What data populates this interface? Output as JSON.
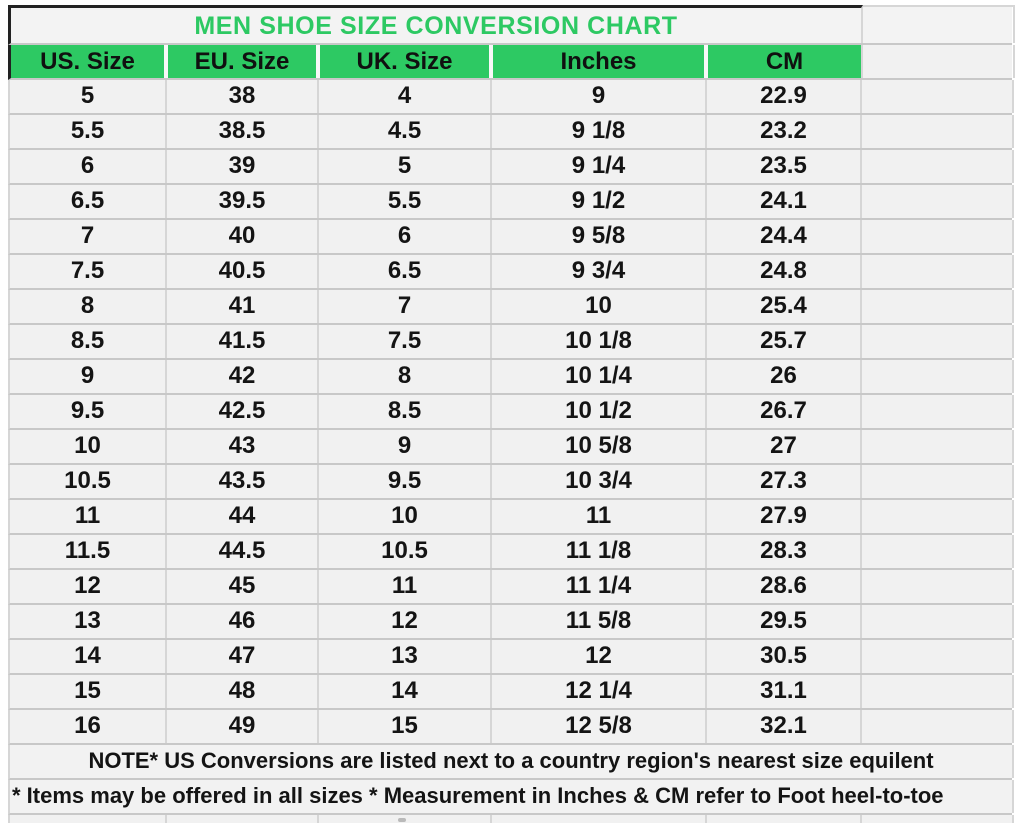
{
  "title": "MEN SHOE SIZE CONVERSION CHART",
  "table": {
    "headers": [
      "US. Size",
      "EU. Size",
      "UK. Size",
      "Inches",
      "CM"
    ],
    "rows": [
      [
        "5",
        "38",
        "4",
        "9",
        "22.9"
      ],
      [
        "5.5",
        "38.5",
        "4.5",
        "9 1/8",
        "23.2"
      ],
      [
        "6",
        "39",
        "5",
        "9 1/4",
        "23.5"
      ],
      [
        "6.5",
        "39.5",
        "5.5",
        "9 1/2",
        "24.1"
      ],
      [
        "7",
        "40",
        "6",
        "9 5/8",
        "24.4"
      ],
      [
        "7.5",
        "40.5",
        "6.5",
        "9 3/4",
        "24.8"
      ],
      [
        "8",
        "41",
        "7",
        "10",
        "25.4"
      ],
      [
        "8.5",
        "41.5",
        "7.5",
        "10 1/8",
        "25.7"
      ],
      [
        "9",
        "42",
        "8",
        "10 1/4",
        "26"
      ],
      [
        "9.5",
        "42.5",
        "8.5",
        "10 1/2",
        "26.7"
      ],
      [
        "10",
        "43",
        "9",
        "10 5/8",
        "27"
      ],
      [
        "10.5",
        "43.5",
        "9.5",
        "10 3/4",
        "27.3"
      ],
      [
        "11",
        "44",
        "10",
        "11",
        "27.9"
      ],
      [
        "11.5",
        "44.5",
        "10.5",
        "11 1/8",
        "28.3"
      ],
      [
        "12",
        "45",
        "11",
        "11 1/4",
        "28.6"
      ],
      [
        "13",
        "46",
        "12",
        "11 5/8",
        "29.5"
      ],
      [
        "14",
        "47",
        "13",
        "12",
        "30.5"
      ],
      [
        "15",
        "48",
        "14",
        "12 1/4",
        "31.1"
      ],
      [
        "16",
        "49",
        "15",
        "12 5/8",
        "32.1"
      ]
    ]
  },
  "notes": {
    "line1": "NOTE* US Conversions are listed next to a country region's nearest size equilent",
    "line2": "* Items may be offered in all sizes * Measurement in Inches & CM refer to Foot heel-to-toe"
  },
  "colors": {
    "accent_green": "#2dc963",
    "cell_background": "#f1f1f1",
    "gridline": "#c8c8c8",
    "dark_border": "#222222",
    "text": "#141414"
  },
  "chart_data": {
    "type": "table",
    "title": "MEN SHOE SIZE CONVERSION CHART",
    "columns": [
      "US. Size",
      "EU. Size",
      "UK. Size",
      "Inches",
      "CM"
    ],
    "rows": [
      [
        "5",
        "38",
        "4",
        "9",
        "22.9"
      ],
      [
        "5.5",
        "38.5",
        "4.5",
        "9 1/8",
        "23.2"
      ],
      [
        "6",
        "39",
        "5",
        "9 1/4",
        "23.5"
      ],
      [
        "6.5",
        "39.5",
        "5.5",
        "9 1/2",
        "24.1"
      ],
      [
        "7",
        "40",
        "6",
        "9 5/8",
        "24.4"
      ],
      [
        "7.5",
        "40.5",
        "6.5",
        "9 3/4",
        "24.8"
      ],
      [
        "8",
        "41",
        "7",
        "10",
        "25.4"
      ],
      [
        "8.5",
        "41.5",
        "7.5",
        "10 1/8",
        "25.7"
      ],
      [
        "9",
        "42",
        "8",
        "10 1/4",
        "26"
      ],
      [
        "9.5",
        "42.5",
        "8.5",
        "10 1/2",
        "26.7"
      ],
      [
        "10",
        "43",
        "9",
        "10 5/8",
        "27"
      ],
      [
        "10.5",
        "43.5",
        "9.5",
        "10 3/4",
        "27.3"
      ],
      [
        "11",
        "44",
        "10",
        "11",
        "27.9"
      ],
      [
        "11.5",
        "44.5",
        "10.5",
        "11 1/8",
        "28.3"
      ],
      [
        "12",
        "45",
        "11",
        "11 1/4",
        "28.6"
      ],
      [
        "13",
        "46",
        "12",
        "11 5/8",
        "29.5"
      ],
      [
        "14",
        "47",
        "13",
        "12",
        "30.5"
      ],
      [
        "15",
        "48",
        "14",
        "12 1/4",
        "31.1"
      ],
      [
        "16",
        "49",
        "15",
        "12 5/8",
        "32.1"
      ]
    ],
    "annotations": [
      "NOTE* US Conversions are listed next to a country region's nearest size equilent",
      "* Items may be offered in all sizes * Measurement in Inches & CM refer to Foot heel-to-toe"
    ]
  }
}
